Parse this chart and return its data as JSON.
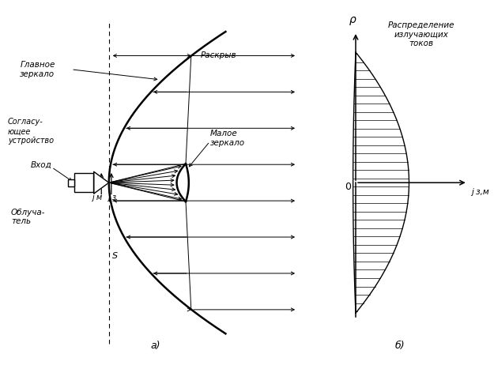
{
  "fig_width": 6.25,
  "fig_height": 4.67,
  "bg_color": "#ffffff",
  "line_color": "#000000",
  "label_a": "а)",
  "label_b": "б)",
  "title_b": "Распределение\nизлучающих\nтоков",
  "label_glavnoe": "Главное\nзеркало",
  "label_raskryd": "Раскрыв",
  "label_soglasuyuschee": "Согласу-\nющее\nустройство",
  "label_maloe": "Малое\nзеркало",
  "label_vhod": "Вход",
  "label_obluch": "Облуча-\nтель",
  "label_jm": "j м",
  "label_j3": "j з",
  "label_j3m": "j з,м",
  "label_s": "S",
  "label_rho": "ρ",
  "label_0": "0"
}
